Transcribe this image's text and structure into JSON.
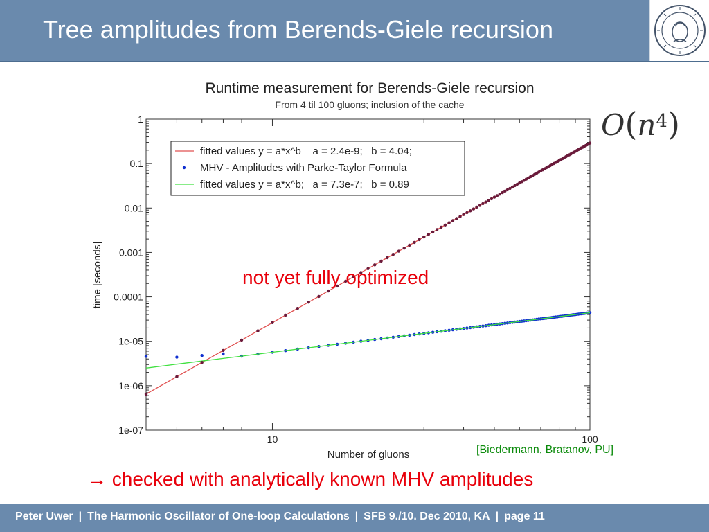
{
  "slide": {
    "title": "Tree amplitudes from Berends-Giele recursion",
    "formula": {
      "letter": "O",
      "open": "(",
      "var": "n",
      "exp": "4",
      "close": ")"
    },
    "annotation": "not yet fully optimized",
    "citation": "[Biedermann, Bratanov, PU]",
    "checked": {
      "arrow": "→",
      "text": "checked with analytically known MHV amplitudes"
    },
    "footer": {
      "author": "Peter Uwer",
      "talk": "The Harmonic Oscillator of One-loop Calculations",
      "event": "SFB 9./10. Dec 2010, KA",
      "page": "page 11",
      "separator": "|"
    },
    "seal_icon": "humboldt-university-seal-icon",
    "colors": {
      "header": "#6a8aad",
      "red": "#e8000b",
      "green": "#0b8a0b"
    }
  },
  "chart_data": {
    "type": "scatter",
    "title": "Runtime measurement for Berends-Giele recursion",
    "subtitle": "From 4 til 100 gluons; inclusion of the cache",
    "xlabel": "Number of gluons",
    "ylabel": "time [seconds]",
    "xscale": "log",
    "yscale": "log",
    "xlim": [
      4,
      100
    ],
    "ylim": [
      1e-07,
      1
    ],
    "x_ticks": [
      10,
      100
    ],
    "x_tick_labels": [
      "10",
      "100"
    ],
    "y_ticks": [
      1e-07,
      1e-06,
      1e-05,
      0.0001,
      0.001,
      0.01,
      0.1,
      1
    ],
    "y_tick_labels": [
      "1e-07",
      "1e-06",
      "1e-05",
      "0.0001",
      "0.001",
      "0.01",
      "0.1",
      "1"
    ],
    "legend_position": "top-left",
    "series": [
      {
        "name": "fitted values y = a*x^b    a = 2.4e-9;   b = 4.04;",
        "kind": "line",
        "color": "#e05050",
        "a": 2.4e-09,
        "b": 4.04,
        "x_range": [
          4,
          100
        ]
      },
      {
        "name": "MHV - Amplitudes with Parke-Taylor Formula",
        "kind": "points",
        "color": "#1030d0",
        "a": 7.3e-07,
        "b": 0.89,
        "x_start": 4,
        "x_end": 100,
        "points": [
          [
            4,
            4.6e-06
          ],
          [
            5,
            4.4e-06
          ],
          [
            6,
            4.8e-06
          ],
          [
            7,
            5.2e-06
          ]
        ]
      },
      {
        "name": "fitted values y = a*x^b;   a = 7.3e-7;   b = 0.89",
        "kind": "line",
        "color": "#40e040",
        "a": 7.3e-07,
        "b": 0.89,
        "x_range": [
          4,
          100
        ]
      },
      {
        "name": "",
        "kind": "points",
        "color": "#6a1a3a",
        "a": 2.4e-09,
        "b": 4.04,
        "x_start": 4,
        "x_end": 100
      }
    ]
  }
}
